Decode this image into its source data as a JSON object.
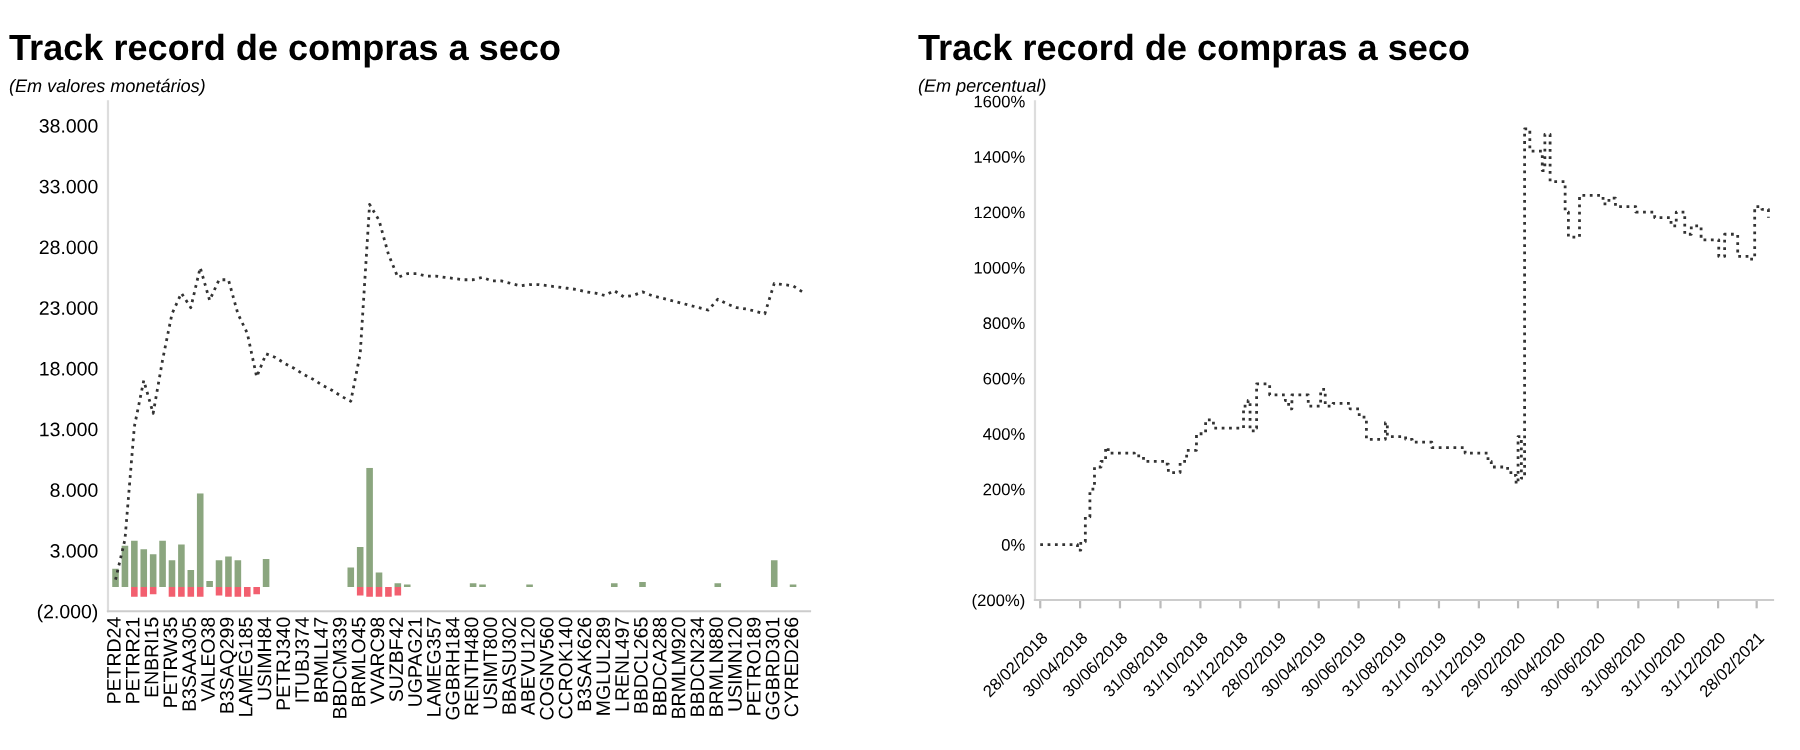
{
  "chart_data": [
    {
      "type": "line",
      "title": "Track record de compras a seco",
      "subtitle": "(Em valores monetários)",
      "categories": [
        "PETRD24",
        null,
        "PETRR21",
        null,
        "ENBRI15",
        null,
        "PETRW35",
        null,
        "B3SAA305",
        null,
        "VALEO38",
        null,
        "B3SAQ299",
        null,
        "LAMEG185",
        null,
        "USIMH84",
        null,
        "PETRJ340",
        null,
        "ITUBJ374",
        null,
        "BRMLL47",
        null,
        "BBDCM339",
        null,
        "BRMLO45",
        null,
        "VVARC98",
        null,
        "SUZBF42",
        null,
        "UGPAG21",
        null,
        "LAMEG357",
        null,
        "GGBRH184",
        null,
        "RENTH480",
        null,
        "USIMT800",
        null,
        "BBASU302",
        null,
        "ABEVU120",
        null,
        "COGNV560",
        null,
        "CCROK140",
        null,
        "B3SAK626",
        null,
        "MGLUL289",
        null,
        "LRENL497",
        null,
        "BBDCL265",
        null,
        "BBDCA288",
        null,
        "BRMLM920",
        null,
        "BBDCN234",
        null,
        "BRMLN880",
        null,
        "USIMN120",
        null,
        "PETRO189",
        null,
        "GGBRD301",
        null,
        "CYRED266",
        null
      ],
      "series": [
        {
          "type": "line",
          "color": "#333333",
          "values": [
            600,
            3900,
            13200,
            17000,
            14300,
            18700,
            22500,
            24200,
            23000,
            26300,
            23600,
            25300,
            25300,
            22500,
            20900,
            17300,
            19200,
            18900,
            18400,
            18000,
            17500,
            17100,
            16600,
            16200,
            15700,
            15300,
            19200,
            31500,
            30200,
            27400,
            25500,
            25800,
            25800,
            25600,
            25600,
            25500,
            25400,
            25300,
            25300,
            25500,
            25200,
            25200,
            25000,
            24800,
            24900,
            24900,
            24800,
            24700,
            24600,
            24500,
            24300,
            24200,
            24000,
            24400,
            23900,
            24000,
            24300,
            24000,
            23800,
            23600,
            23400,
            23200,
            23000,
            22800,
            23700,
            23300,
            23000,
            22900,
            22700,
            22500,
            25000,
            24900,
            24800,
            24300
          ]
        },
        {
          "type": "bar",
          "color": "#8ba67f",
          "values": [
            1500,
            3400,
            3800,
            3100,
            2700,
            3800,
            2200,
            3500,
            1400,
            7700,
            500,
            2200,
            2500,
            2200,
            null,
            null,
            2300,
            null,
            null,
            null,
            null,
            null,
            null,
            null,
            null,
            1600,
            3300,
            9800,
            1200,
            null,
            300,
            200,
            null,
            null,
            null,
            null,
            null,
            null,
            300,
            200,
            null,
            null,
            null,
            null,
            200,
            null,
            null,
            null,
            null,
            null,
            null,
            null,
            null,
            300,
            null,
            null,
            400,
            null,
            null,
            null,
            null,
            null,
            null,
            null,
            300,
            null,
            null,
            null,
            null,
            null,
            2200,
            null,
            200,
            null
          ]
        },
        {
          "type": "bar",
          "color": "#f25f6f",
          "values": [
            null,
            null,
            -800,
            -800,
            -600,
            null,
            -800,
            -800,
            -800,
            -800,
            null,
            -700,
            -800,
            -800,
            -800,
            -600,
            null,
            null,
            null,
            null,
            null,
            null,
            null,
            null,
            null,
            null,
            -700,
            -800,
            -800,
            -800,
            -700,
            null,
            null,
            null,
            null,
            null,
            null,
            null,
            null,
            null,
            null,
            null,
            null,
            null,
            null,
            null,
            null,
            null,
            null,
            null,
            null,
            null,
            null,
            null,
            null,
            null,
            null,
            null,
            null,
            null,
            null,
            null,
            null,
            null,
            null,
            null,
            null,
            null,
            null,
            null,
            null,
            null,
            null,
            null
          ]
        }
      ],
      "ylim": [
        -2000,
        40000
      ],
      "yticks": [
        {
          "value": -2000,
          "label": "(2.000)"
        },
        {
          "value": 3000,
          "label": "3.000"
        },
        {
          "value": 8000,
          "label": "8.000"
        },
        {
          "value": 13000,
          "label": "13.000"
        },
        {
          "value": 18000,
          "label": "18.000"
        },
        {
          "value": 23000,
          "label": "23.000"
        },
        {
          "value": 28000,
          "label": "28.000"
        },
        {
          "value": 33000,
          "label": "33.000"
        },
        {
          "value": 38000,
          "label": "38.000"
        }
      ],
      "line_style": "dotted"
    },
    {
      "type": "step",
      "title": "Track record de compras a seco",
      "subtitle": "(Em percentual)",
      "x": [
        "2018-02-28",
        "2018-04-24",
        "2018-04-26",
        "2018-05-01",
        "2018-05-08",
        "2018-05-15",
        "2018-05-22",
        "2018-06-01",
        "2018-06-08",
        "2018-06-12",
        "2018-07-22",
        "2018-08-05",
        "2018-09-08",
        "2018-09-12",
        "2018-09-28",
        "2018-09-30",
        "2018-10-10",
        "2018-10-25",
        "2018-11-08",
        "2018-11-20",
        "2018-12-30",
        "2019-01-05",
        "2019-01-12",
        "2019-01-15",
        "2019-01-22",
        "2019-01-25",
        "2019-02-14",
        "2019-03-10",
        "2019-03-15",
        "2019-03-20",
        "2019-04-08",
        "2019-04-14",
        "2019-04-30",
        "2019-05-03",
        "2019-05-10",
        "2019-05-22",
        "2019-06-17",
        "2019-07-01",
        "2019-07-12",
        "2019-08-06",
        "2019-08-10",
        "2019-08-13",
        "2019-09-10",
        "2019-09-20",
        "2019-10-20",
        "2019-12-10",
        "2020-01-14",
        "2020-01-19",
        "2020-02-13",
        "2020-02-22",
        "2020-02-26",
        "2020-02-29",
        "2020-03-03",
        "2020-03-05",
        "2020-03-10",
        "2020-03-18",
        "2020-04-03",
        "2020-04-06",
        "2020-04-10",
        "2020-04-18",
        "2020-05-08",
        "2020-05-11",
        "2020-05-16",
        "2020-05-28",
        "2020-06-02",
        "2020-07-08",
        "2020-07-17",
        "2020-07-27",
        "2020-08-27",
        "2020-09-25",
        "2020-10-20",
        "2020-10-28",
        "2020-11-10",
        "2020-11-20",
        "2020-12-05",
        "2021-01-01",
        "2021-01-10",
        "2021-01-30",
        "2021-02-18",
        "2021-02-25",
        "2021-03-08",
        "2021-03-18"
      ],
      "series": [
        {
          "color": "#333333",
          "values": [
            0,
            0,
            -20,
            10,
            100,
            200,
            280,
            300,
            350,
            330,
            320,
            300,
            290,
            260,
            260,
            300,
            340,
            400,
            450,
            420,
            420,
            500,
            520,
            410,
            420,
            580,
            540,
            520,
            490,
            540,
            540,
            500,
            500,
            560,
            500,
            510,
            490,
            460,
            380,
            380,
            440,
            390,
            380,
            370,
            350,
            330,
            300,
            280,
            260,
            250,
            220,
            390,
            390,
            240,
            1500,
            1420,
            1420,
            1350,
            1480,
            1310,
            1310,
            1200,
            1110,
            1110,
            1260,
            1230,
            1250,
            1220,
            1200,
            1180,
            1150,
            1200,
            1120,
            1150,
            1100,
            1040,
            1120,
            1040,
            1030,
            1220,
            1210,
            1180
          ]
        }
      ],
      "xlim": [
        "2018-02-20",
        "2021-03-25"
      ],
      "xticks": [
        {
          "value": "2018-02-28",
          "label": "28/02/2018"
        },
        {
          "value": "2018-04-30",
          "label": "30/04/2018"
        },
        {
          "value": "2018-06-30",
          "label": "30/06/2018"
        },
        {
          "value": "2018-08-31",
          "label": "31/08/2018"
        },
        {
          "value": "2018-10-31",
          "label": "31/10/2018"
        },
        {
          "value": "2018-12-31",
          "label": "31/12/2018"
        },
        {
          "value": "2019-02-28",
          "label": "28/02/2019"
        },
        {
          "value": "2019-04-30",
          "label": "30/04/2019"
        },
        {
          "value": "2019-06-30",
          "label": "30/06/2019"
        },
        {
          "value": "2019-08-31",
          "label": "31/08/2019"
        },
        {
          "value": "2019-10-31",
          "label": "31/10/2019"
        },
        {
          "value": "2019-12-31",
          "label": "31/12/2019"
        },
        {
          "value": "2020-02-29",
          "label": "29/02/2020"
        },
        {
          "value": "2020-04-30",
          "label": "30/04/2020"
        },
        {
          "value": "2020-06-30",
          "label": "30/06/2020"
        },
        {
          "value": "2020-08-31",
          "label": "31/08/2020"
        },
        {
          "value": "2020-10-31",
          "label": "31/10/2020"
        },
        {
          "value": "2020-12-31",
          "label": "31/12/2020"
        },
        {
          "value": "2021-02-28",
          "label": "28/02/2021"
        }
      ],
      "ylim": [
        -200,
        1600
      ],
      "yticks": [
        {
          "value": -200,
          "label": "(200%)"
        },
        {
          "value": 0,
          "label": "0%"
        },
        {
          "value": 200,
          "label": "200%"
        },
        {
          "value": 400,
          "label": "400%"
        },
        {
          "value": 600,
          "label": "600%"
        },
        {
          "value": 800,
          "label": "800%"
        },
        {
          "value": 1000,
          "label": "1000%"
        },
        {
          "value": 1200,
          "label": "1200%"
        },
        {
          "value": 1400,
          "label": "1400%"
        },
        {
          "value": 1600,
          "label": "1600%"
        }
      ],
      "line_style": "dotted"
    }
  ]
}
